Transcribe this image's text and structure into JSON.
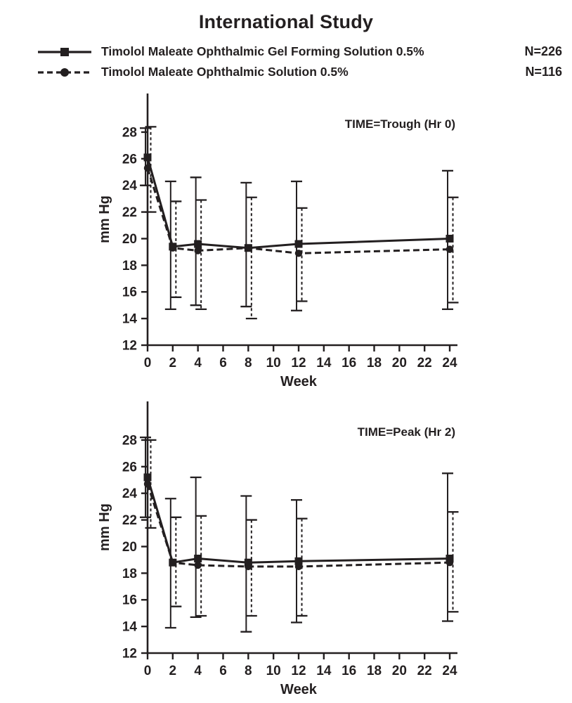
{
  "title": "International Study",
  "ink_color": "#231f20",
  "legend": {
    "items": [
      {
        "label": "Timolol Maleate Ophthalmic Gel Forming Solution 0.5%",
        "n": "N=226",
        "marker": "square",
        "line": "solid"
      },
      {
        "label": "Timolol Maleate Ophthalmic Solution 0.5%",
        "n": "N=116",
        "marker": "circle",
        "line": "dashed"
      }
    ]
  },
  "chart_data": [
    {
      "type": "line",
      "annotation": "TIME=Trough (Hr 0)",
      "xlabel": "Week",
      "ylabel": "mm Hg",
      "xlim": [
        0,
        24
      ],
      "ylim": [
        12,
        28
      ],
      "xticks": [
        0,
        2,
        4,
        6,
        8,
        10,
        12,
        14,
        16,
        18,
        20,
        22,
        24
      ],
      "yticks": [
        12,
        14,
        16,
        18,
        20,
        22,
        24,
        26,
        28
      ],
      "grid": false,
      "series": [
        {
          "name": "gel-forming-solution",
          "line": "solid",
          "marker": "square",
          "x": [
            0,
            2,
            4,
            8,
            12,
            24
          ],
          "y": [
            26.1,
            19.4,
            19.6,
            19.3,
            19.6,
            20.0
          ],
          "err_lo": [
            24.0,
            14.7,
            15.0,
            14.9,
            14.6,
            14.7
          ],
          "err_hi": [
            28.3,
            24.3,
            24.6,
            24.2,
            24.3,
            25.1
          ]
        },
        {
          "name": "ophthalmic-solution",
          "line": "dashed",
          "marker": "circle",
          "x": [
            0,
            2,
            4,
            8,
            12,
            24
          ],
          "y": [
            25.3,
            19.3,
            19.1,
            19.3,
            18.9,
            19.2
          ],
          "err_lo": [
            22.0,
            15.6,
            14.7,
            14.0,
            15.3,
            15.2
          ],
          "err_hi": [
            28.4,
            22.8,
            22.9,
            23.1,
            22.3,
            23.1
          ]
        }
      ]
    },
    {
      "type": "line",
      "annotation": "TIME=Peak (Hr 2)",
      "xlabel": "Week",
      "ylabel": "mm Hg",
      "xlim": [
        0,
        24
      ],
      "ylim": [
        12,
        28
      ],
      "xticks": [
        0,
        2,
        4,
        6,
        8,
        10,
        12,
        14,
        16,
        18,
        20,
        22,
        24
      ],
      "yticks": [
        12,
        14,
        16,
        18,
        20,
        22,
        24,
        26,
        28
      ],
      "grid": false,
      "series": [
        {
          "name": "gel-forming-solution",
          "line": "solid",
          "marker": "square",
          "x": [
            0,
            2,
            4,
            8,
            12,
            24
          ],
          "y": [
            25.2,
            18.8,
            19.1,
            18.8,
            18.9,
            19.1
          ],
          "err_lo": [
            22.2,
            13.9,
            14.7,
            13.6,
            14.3,
            14.4
          ],
          "err_hi": [
            28.2,
            23.6,
            25.2,
            23.8,
            23.5,
            25.5
          ]
        },
        {
          "name": "ophthalmic-solution",
          "line": "dashed",
          "marker": "circle",
          "x": [
            0,
            2,
            4,
            8,
            12,
            24
          ],
          "y": [
            24.7,
            18.8,
            18.6,
            18.5,
            18.5,
            18.8
          ],
          "err_lo": [
            21.4,
            15.5,
            14.8,
            14.8,
            14.8,
            15.1
          ],
          "err_hi": [
            28.0,
            22.2,
            22.3,
            22.0,
            22.1,
            22.6
          ]
        }
      ]
    }
  ]
}
